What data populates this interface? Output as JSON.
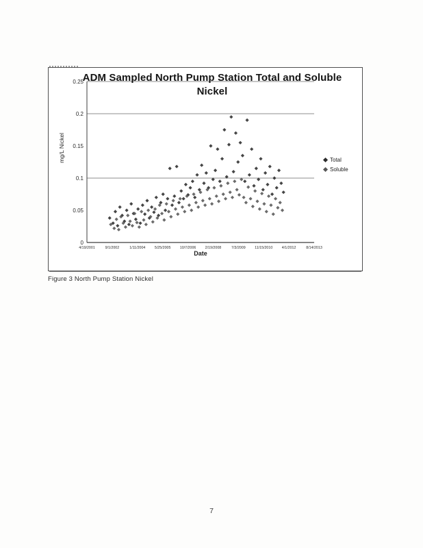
{
  "caption": "Figure 3 North Pump Station Nickel",
  "page_number": "7",
  "chart_data": {
    "type": "scatter",
    "title": "ADM Sampled North Pump Station Total and Soluble Nickel",
    "xlabel": "Date",
    "ylabel": "mg/L Nickel",
    "ylim": [
      0,
      0.25
    ],
    "y_ticks": [
      "0",
      "0.05",
      "0.1",
      "0.15",
      "0.2",
      "0.25"
    ],
    "x_ticks": [
      "4/19/2001",
      "9/1/2002",
      "1/11/2004",
      "5/25/2005",
      "10/7/2006",
      "2/19/2008",
      "7/3/2009",
      "11/15/2010",
      "4/1/2012",
      "8/14/2013"
    ],
    "gridlines_at": [
      0.1,
      0.2,
      0.25
    ],
    "legend_position": "right",
    "x_encoding": "point x = fraction of x-axis, 0 = first tick (4/19/2001), 1 = last tick (8/14/2013)",
    "series": [
      {
        "name": "Total",
        "marker": "diamond",
        "color": "#2b2b2b",
        "points": [
          [
            0.1,
            0.038
          ],
          [
            0.115,
            0.03
          ],
          [
            0.125,
            0.048
          ],
          [
            0.135,
            0.026
          ],
          [
            0.145,
            0.055
          ],
          [
            0.155,
            0.042
          ],
          [
            0.165,
            0.033
          ],
          [
            0.175,
            0.05
          ],
          [
            0.185,
            0.028
          ],
          [
            0.195,
            0.06
          ],
          [
            0.205,
            0.045
          ],
          [
            0.215,
            0.036
          ],
          [
            0.225,
            0.052
          ],
          [
            0.235,
            0.03
          ],
          [
            0.245,
            0.058
          ],
          [
            0.255,
            0.044
          ],
          [
            0.265,
            0.065
          ],
          [
            0.275,
            0.038
          ],
          [
            0.285,
            0.055
          ],
          [
            0.295,
            0.047
          ],
          [
            0.305,
            0.07
          ],
          [
            0.315,
            0.042
          ],
          [
            0.325,
            0.062
          ],
          [
            0.335,
            0.075
          ],
          [
            0.345,
            0.05
          ],
          [
            0.355,
            0.068
          ],
          [
            0.365,
            0.115
          ],
          [
            0.375,
            0.058
          ],
          [
            0.385,
            0.072
          ],
          [
            0.395,
            0.118
          ],
          [
            0.405,
            0.062
          ],
          [
            0.415,
            0.08
          ],
          [
            0.425,
            0.068
          ],
          [
            0.435,
            0.09
          ],
          [
            0.445,
            0.074
          ],
          [
            0.455,
            0.085
          ],
          [
            0.465,
            0.095
          ],
          [
            0.475,
            0.07
          ],
          [
            0.485,
            0.105
          ],
          [
            0.495,
            0.082
          ],
          [
            0.505,
            0.12
          ],
          [
            0.515,
            0.092
          ],
          [
            0.525,
            0.108
          ],
          [
            0.535,
            0.085
          ],
          [
            0.545,
            0.15
          ],
          [
            0.555,
            0.098
          ],
          [
            0.565,
            0.112
          ],
          [
            0.575,
            0.145
          ],
          [
            0.585,
            0.095
          ],
          [
            0.595,
            0.13
          ],
          [
            0.605,
            0.175
          ],
          [
            0.615,
            0.102
          ],
          [
            0.625,
            0.152
          ],
          [
            0.635,
            0.195
          ],
          [
            0.645,
            0.11
          ],
          [
            0.655,
            0.17
          ],
          [
            0.665,
            0.125
          ],
          [
            0.675,
            0.155
          ],
          [
            0.685,
            0.135
          ],
          [
            0.695,
            0.095
          ],
          [
            0.705,
            0.19
          ],
          [
            0.715,
            0.105
          ],
          [
            0.725,
            0.145
          ],
          [
            0.735,
            0.088
          ],
          [
            0.745,
            0.115
          ],
          [
            0.755,
            0.098
          ],
          [
            0.765,
            0.13
          ],
          [
            0.775,
            0.082
          ],
          [
            0.785,
            0.108
          ],
          [
            0.795,
            0.09
          ],
          [
            0.805,
            0.118
          ],
          [
            0.815,
            0.075
          ],
          [
            0.825,
            0.1
          ],
          [
            0.835,
            0.085
          ],
          [
            0.845,
            0.112
          ],
          [
            0.855,
            0.092
          ],
          [
            0.865,
            0.078
          ]
        ]
      },
      {
        "name": "Soluble",
        "marker": "diamond",
        "color": "#575757",
        "points": [
          [
            0.105,
            0.028
          ],
          [
            0.12,
            0.022
          ],
          [
            0.13,
            0.036
          ],
          [
            0.14,
            0.02
          ],
          [
            0.15,
            0.04
          ],
          [
            0.16,
            0.03
          ],
          [
            0.17,
            0.024
          ],
          [
            0.18,
            0.042
          ],
          [
            0.19,
            0.033
          ],
          [
            0.2,
            0.026
          ],
          [
            0.21,
            0.045
          ],
          [
            0.22,
            0.031
          ],
          [
            0.23,
            0.024
          ],
          [
            0.24,
            0.048
          ],
          [
            0.25,
            0.035
          ],
          [
            0.26,
            0.028
          ],
          [
            0.27,
            0.05
          ],
          [
            0.28,
            0.04
          ],
          [
            0.29,
            0.032
          ],
          [
            0.3,
            0.052
          ],
          [
            0.31,
            0.038
          ],
          [
            0.32,
            0.058
          ],
          [
            0.33,
            0.045
          ],
          [
            0.34,
            0.035
          ],
          [
            0.35,
            0.06
          ],
          [
            0.36,
            0.048
          ],
          [
            0.37,
            0.04
          ],
          [
            0.38,
            0.065
          ],
          [
            0.39,
            0.052
          ],
          [
            0.4,
            0.044
          ],
          [
            0.41,
            0.068
          ],
          [
            0.42,
            0.055
          ],
          [
            0.43,
            0.048
          ],
          [
            0.44,
            0.072
          ],
          [
            0.45,
            0.058
          ],
          [
            0.46,
            0.05
          ],
          [
            0.47,
            0.075
          ],
          [
            0.48,
            0.062
          ],
          [
            0.49,
            0.055
          ],
          [
            0.5,
            0.078
          ],
          [
            0.51,
            0.065
          ],
          [
            0.52,
            0.058
          ],
          [
            0.53,
            0.082
          ],
          [
            0.54,
            0.068
          ],
          [
            0.55,
            0.06
          ],
          [
            0.56,
            0.085
          ],
          [
            0.57,
            0.072
          ],
          [
            0.58,
            0.064
          ],
          [
            0.59,
            0.088
          ],
          [
            0.6,
            0.075
          ],
          [
            0.61,
            0.068
          ],
          [
            0.62,
            0.092
          ],
          [
            0.63,
            0.078
          ],
          [
            0.64,
            0.07
          ],
          [
            0.65,
            0.095
          ],
          [
            0.66,
            0.082
          ],
          [
            0.67,
            0.074
          ],
          [
            0.68,
            0.098
          ],
          [
            0.69,
            0.07
          ],
          [
            0.7,
            0.062
          ],
          [
            0.71,
            0.086
          ],
          [
            0.72,
            0.068
          ],
          [
            0.73,
            0.056
          ],
          [
            0.74,
            0.08
          ],
          [
            0.75,
            0.064
          ],
          [
            0.76,
            0.052
          ],
          [
            0.77,
            0.076
          ],
          [
            0.78,
            0.06
          ],
          [
            0.79,
            0.048
          ],
          [
            0.8,
            0.072
          ],
          [
            0.81,
            0.058
          ],
          [
            0.82,
            0.044
          ],
          [
            0.83,
            0.068
          ],
          [
            0.84,
            0.054
          ],
          [
            0.85,
            0.062
          ],
          [
            0.86,
            0.05
          ]
        ]
      }
    ]
  }
}
